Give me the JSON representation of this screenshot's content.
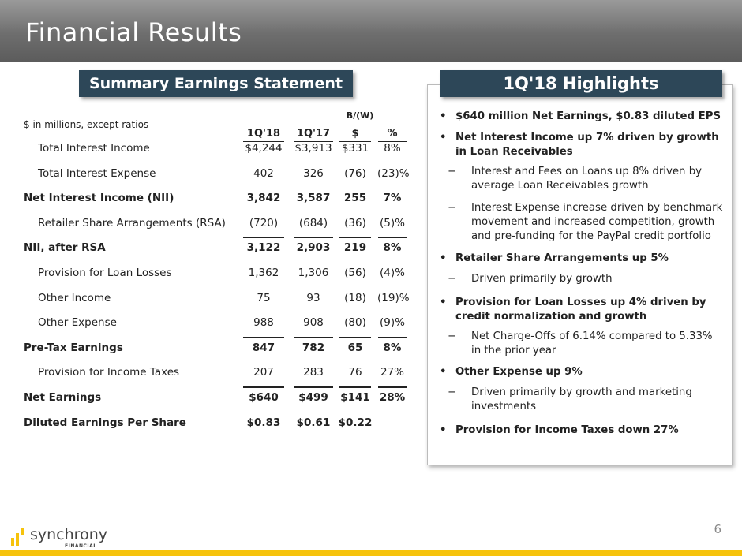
{
  "title": "Financial Results",
  "left_title": "Summary Earnings Statement",
  "right_title": "1Q'18 Highlights",
  "table": {
    "note": "$ in millions, except ratios",
    "group_header": "B/(W)",
    "columns": [
      "1Q'18",
      "1Q'17",
      "$",
      "%"
    ],
    "rows": [
      {
        "label": "Total Interest Income",
        "values": [
          "$4,244",
          "$3,913",
          "$331",
          "8%"
        ]
      },
      {
        "label": "Total Interest Expense",
        "values": [
          "402",
          "326",
          "(76)",
          "(23)%"
        ]
      },
      {
        "label": "Net Interest Income (NII)",
        "values": [
          "3,842",
          "3,587",
          "255",
          "7%"
        ]
      },
      {
        "label": "Retailer Share Arrangements (RSA)",
        "values": [
          "(720)",
          "(684)",
          "(36)",
          "(5)%"
        ]
      },
      {
        "label": "NII, after RSA",
        "values": [
          "3,122",
          "2,903",
          "219",
          "8%"
        ]
      },
      {
        "label": "Provision for Loan Losses",
        "values": [
          "1,362",
          "1,306",
          "(56)",
          "(4)%"
        ]
      },
      {
        "label": "Other Income",
        "values": [
          "75",
          "93",
          "(18)",
          "(19)%"
        ]
      },
      {
        "label": "Other Expense",
        "values": [
          "988",
          "908",
          "(80)",
          "(9)%"
        ]
      },
      {
        "label": "Pre-Tax Earnings",
        "values": [
          "847",
          "782",
          "65",
          "8%"
        ]
      },
      {
        "label": "Provision for Income Taxes",
        "values": [
          "207",
          "283",
          "76",
          "27%"
        ]
      },
      {
        "label": "Net Earnings",
        "values": [
          "$640",
          "$499",
          "$141",
          "28%"
        ]
      },
      {
        "label": "Diluted Earnings Per Share",
        "values": [
          "$0.83",
          "$0.61",
          "$0.22",
          ""
        ]
      }
    ]
  },
  "highlights": [
    {
      "bullet": "•",
      "text": "$640 million Net Earnings, $0.83 diluted EPS"
    },
    {
      "bullet": "•",
      "text": "Net Interest Income up 7% driven by growth in Loan Receivables"
    },
    {
      "bullet": "−",
      "text": "Interest and Fees on Loans up 8% driven by average Loan Receivables growth"
    },
    {
      "bullet": "−",
      "text": "Interest Expense increase driven by benchmark movement and increased competition, growth and pre-funding for the PayPal credit portfolio"
    },
    {
      "bullet": "•",
      "text": "Retailer Share Arrangements up 5%"
    },
    {
      "bullet": "−",
      "text": "Driven primarily by growth"
    },
    {
      "bullet": "•",
      "text": "Provision for Loan Losses up 4% driven by credit normalization and growth"
    },
    {
      "bullet": "−",
      "text": "Net Charge-Offs of 6.14% compared to 5.33% in the prior year"
    },
    {
      "bullet": "•",
      "text": "Other Expense up 9%"
    },
    {
      "bullet": "−",
      "text": "Driven primarily by growth and marketing investments"
    },
    {
      "bullet": "•",
      "text": "Provision for Income Taxes down 27%"
    }
  ],
  "logo": {
    "name": "synchrony",
    "sub": "FINANCIAL"
  },
  "page_number": "6",
  "colors": {
    "title_bar": "#2d4758",
    "accent": "#f6c30c"
  }
}
